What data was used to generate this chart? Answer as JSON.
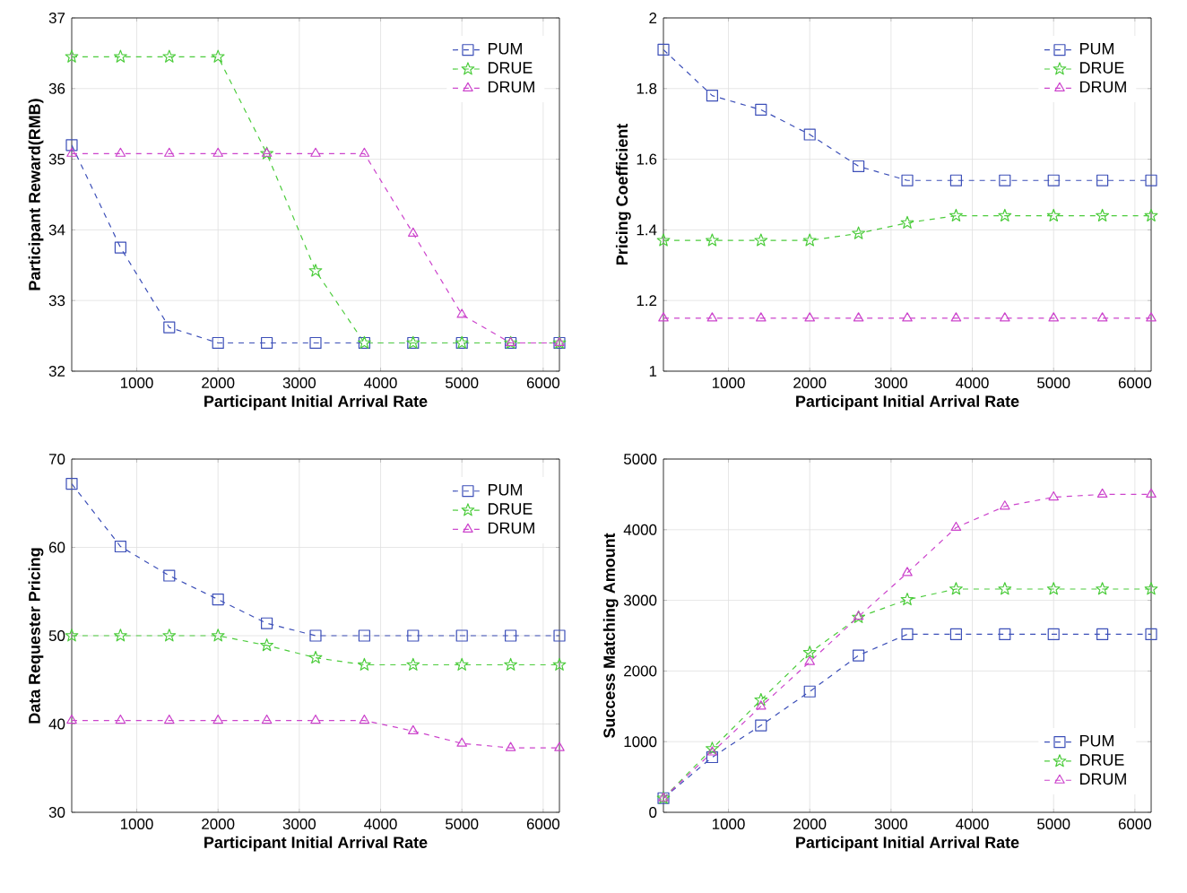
{
  "chart_data": [
    {
      "type": "line",
      "xlabel": "Participant Initial Arrival Rate",
      "ylabel": "Participant Reward(RMB)",
      "x": [
        200,
        800,
        1400,
        2000,
        2600,
        3200,
        3800,
        4400,
        5000,
        5600,
        6200
      ],
      "xlim": [
        200,
        6200
      ],
      "xticks": [
        1000,
        2000,
        3000,
        4000,
        5000,
        6000
      ],
      "ylim": [
        32,
        37
      ],
      "yticks": [
        32,
        33,
        34,
        35,
        36,
        37
      ],
      "grid": true,
      "legend": "top right",
      "line_style": "dashed",
      "series": [
        {
          "name": "PUM",
          "color": "#3c4fb8",
          "marker": "square",
          "values": [
            35.2,
            33.75,
            32.62,
            32.4,
            32.4,
            32.4,
            32.4,
            32.4,
            32.4,
            32.4,
            32.4
          ]
        },
        {
          "name": "DRUE",
          "color": "#4ccc3c",
          "marker": "star",
          "values": [
            36.45,
            36.45,
            36.45,
            36.45,
            35.08,
            33.42,
            32.4,
            32.4,
            32.4,
            32.4,
            32.4
          ]
        },
        {
          "name": "DRUM",
          "color": "#cc44cc",
          "marker": "triangle",
          "values": [
            35.08,
            35.08,
            35.08,
            35.08,
            35.08,
            35.08,
            35.08,
            33.95,
            32.8,
            32.4,
            32.4
          ]
        }
      ]
    },
    {
      "type": "line",
      "xlabel": "Participant Initial Arrival Rate",
      "ylabel": "Pricing Coefficient",
      "x": [
        200,
        800,
        1400,
        2000,
        2600,
        3200,
        3800,
        4400,
        5000,
        5600,
        6200
      ],
      "xlim": [
        200,
        6200
      ],
      "xticks": [
        1000,
        2000,
        3000,
        4000,
        5000,
        6000
      ],
      "ylim": [
        1,
        2
      ],
      "yticks": [
        1,
        1.2,
        1.4,
        1.6,
        1.8,
        2
      ],
      "grid": true,
      "legend": "top right",
      "line_style": "dashed",
      "series": [
        {
          "name": "PUM",
          "color": "#3c4fb8",
          "marker": "square",
          "values": [
            1.91,
            1.78,
            1.74,
            1.67,
            1.58,
            1.54,
            1.54,
            1.54,
            1.54,
            1.54,
            1.54
          ]
        },
        {
          "name": "DRUE",
          "color": "#4ccc3c",
          "marker": "star",
          "values": [
            1.37,
            1.37,
            1.37,
            1.37,
            1.39,
            1.42,
            1.44,
            1.44,
            1.44,
            1.44,
            1.44
          ]
        },
        {
          "name": "DRUM",
          "color": "#cc44cc",
          "marker": "triangle",
          "values": [
            1.15,
            1.15,
            1.15,
            1.15,
            1.15,
            1.15,
            1.15,
            1.15,
            1.15,
            1.15,
            1.15
          ]
        }
      ]
    },
    {
      "type": "line",
      "xlabel": "Participant Initial Arrival Rate",
      "ylabel": "Data Requester Pricing",
      "x": [
        200,
        800,
        1400,
        2000,
        2600,
        3200,
        3800,
        4400,
        5000,
        5600,
        6200
      ],
      "xlim": [
        200,
        6200
      ],
      "xticks": [
        1000,
        2000,
        3000,
        4000,
        5000,
        6000
      ],
      "ylim": [
        30,
        70
      ],
      "yticks": [
        30,
        40,
        50,
        60,
        70
      ],
      "grid": true,
      "legend": "top right",
      "line_style": "dashed",
      "series": [
        {
          "name": "PUM",
          "color": "#3c4fb8",
          "marker": "square",
          "values": [
            67.2,
            60.1,
            56.8,
            54.1,
            51.4,
            50,
            50,
            50,
            50,
            50,
            50
          ]
        },
        {
          "name": "DRUE",
          "color": "#4ccc3c",
          "marker": "star",
          "values": [
            50,
            50,
            50,
            50,
            48.9,
            47.5,
            46.7,
            46.7,
            46.7,
            46.7,
            46.7
          ]
        },
        {
          "name": "DRUM",
          "color": "#cc44cc",
          "marker": "triangle",
          "values": [
            40.4,
            40.4,
            40.4,
            40.4,
            40.4,
            40.4,
            40.4,
            39.2,
            37.8,
            37.3,
            37.3
          ]
        }
      ]
    },
    {
      "type": "line",
      "xlabel": "Participant Initial Arrival Rate",
      "ylabel": "Success Matching Amount",
      "x": [
        200,
        800,
        1400,
        2000,
        2600,
        3200,
        3800,
        4400,
        5000,
        5600,
        6200
      ],
      "xlim": [
        200,
        6200
      ],
      "xticks": [
        1000,
        2000,
        3000,
        4000,
        5000,
        6000
      ],
      "ylim": [
        0,
        5000
      ],
      "yticks": [
        0,
        1000,
        2000,
        3000,
        4000,
        5000
      ],
      "grid": true,
      "legend": "bottom right",
      "line_style": "dashed",
      "series": [
        {
          "name": "PUM",
          "color": "#3c4fb8",
          "marker": "square",
          "values": [
            200,
            780,
            1230,
            1710,
            2220,
            2520,
            2520,
            2520,
            2520,
            2520,
            2520
          ]
        },
        {
          "name": "DRUE",
          "color": "#4ccc3c",
          "marker": "star",
          "values": [
            200,
            900,
            1590,
            2260,
            2760,
            3010,
            3160,
            3160,
            3160,
            3160,
            3160
          ]
        },
        {
          "name": "DRUM",
          "color": "#cc44cc",
          "marker": "triangle",
          "values": [
            200,
            850,
            1500,
            2130,
            2770,
            3390,
            4030,
            4330,
            4460,
            4500,
            4500
          ]
        }
      ]
    }
  ]
}
